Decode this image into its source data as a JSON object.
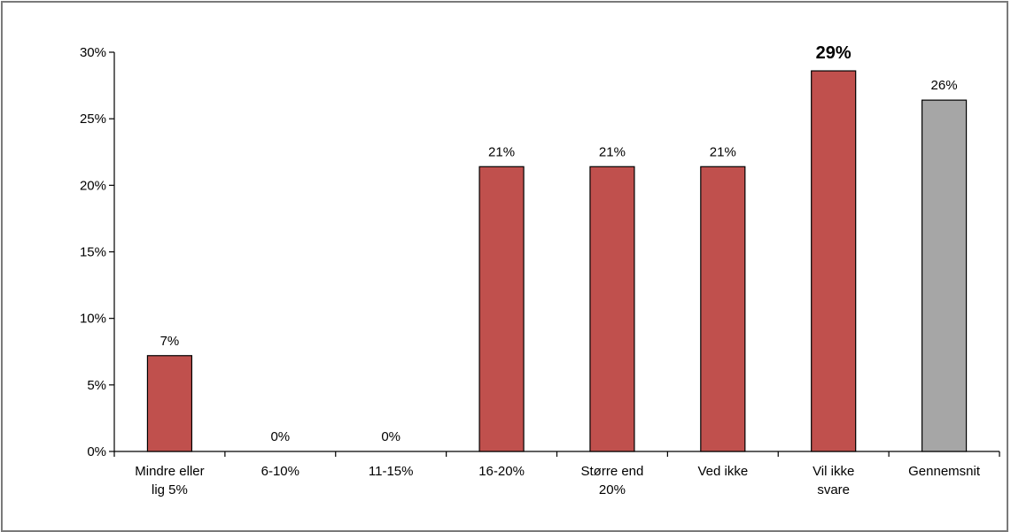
{
  "chart_data": {
    "type": "bar",
    "categories": [
      [
        "Mindre eller",
        "lig 5%"
      ],
      [
        "6-10%"
      ],
      [
        "11-15%"
      ],
      [
        "16-20%"
      ],
      [
        "Større end",
        "20%"
      ],
      [
        "Ved ikke"
      ],
      [
        "Vil ikke",
        "svare"
      ],
      [
        "Gennemsnit"
      ]
    ],
    "values": [
      7.2,
      0,
      0,
      21.4,
      21.4,
      21.4,
      28.6,
      26.4
    ],
    "data_labels": [
      "7%",
      "0%",
      "0%",
      "21%",
      "21%",
      "21%",
      "29%",
      "26%"
    ],
    "highlight_label_index": 6,
    "bar_colors": [
      "#c0504d",
      "#c0504d",
      "#c0504d",
      "#c0504d",
      "#c0504d",
      "#c0504d",
      "#c0504d",
      "#a6a6a6"
    ],
    "ylim": [
      0,
      30
    ],
    "yticks": [
      0,
      5,
      10,
      15,
      20,
      25,
      30
    ],
    "ytick_labels": [
      "0%",
      "5%",
      "10%",
      "15%",
      "20%",
      "25%",
      "30%"
    ],
    "title": "",
    "xlabel": "",
    "ylabel": "",
    "grid": false,
    "legend": "none"
  }
}
